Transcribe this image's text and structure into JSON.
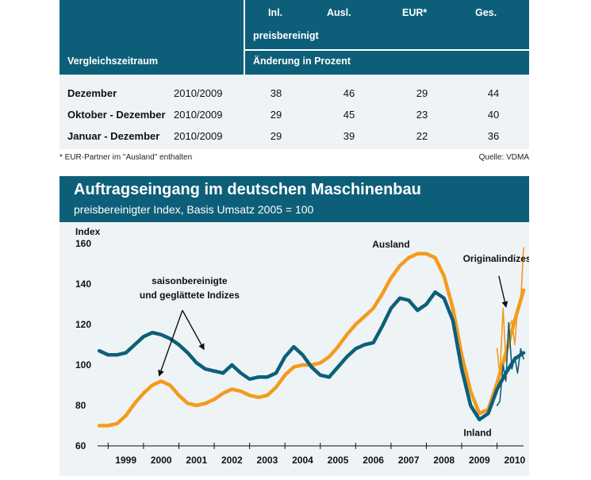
{
  "table": {
    "headers": {
      "inl": "Inl.",
      "ausl": "Ausl.",
      "eur": "EUR*",
      "ges": "Ges.",
      "preisbereinigt": "preisbereinigt",
      "vergleichszeitraum": "Vergleichszeitraum",
      "aenderung": "Änderung in Prozent"
    },
    "rows": [
      {
        "label": "Dezember",
        "period": "2010/2009",
        "inl": "38",
        "ausl": "46",
        "eur": "29",
        "ges": "44"
      },
      {
        "label": "Oktober - Dezember",
        "period": "2010/2009",
        "inl": "29",
        "ausl": "45",
        "eur": "23",
        "ges": "40"
      },
      {
        "label": "Januar - Dezember",
        "period": "2010/2009",
        "inl": "29",
        "ausl": "39",
        "eur": "22",
        "ges": "36"
      }
    ],
    "footnote": "* EUR-Partner im \"Ausland\" enthalten",
    "source": "Quelle: VDMA"
  },
  "chart_data": {
    "type": "line",
    "title": "Auftragseingang im deutschen Maschinenbau",
    "subtitle": "preisbereinigter Index, Basis Umsatz 2005 = 100",
    "ylabel": "Index",
    "ylim": [
      60,
      160
    ],
    "yticks": [
      "60",
      "80",
      "100",
      "120",
      "140",
      "160"
    ],
    "xlim": [
      1998.7,
      2010.75
    ],
    "xticks": [
      {
        "label": "1999",
        "x": 1999.5
      },
      {
        "label": "2000",
        "x": 2000.5
      },
      {
        "label": "2001",
        "x": 2001.5
      },
      {
        "label": "2002",
        "x": 2002.5
      },
      {
        "label": "2003",
        "x": 2003.5
      },
      {
        "label": "2004",
        "x": 2004.5
      },
      {
        "label": "2005",
        "x": 2005.5
      },
      {
        "label": "2006",
        "x": 2006.5
      },
      {
        "label": "2007",
        "x": 2007.5
      },
      {
        "label": "2008",
        "x": 2008.5
      },
      {
        "label": "2009",
        "x": 2009.5
      },
      {
        "label": "2010",
        "x": 2010.5
      }
    ],
    "grid": false,
    "series": [
      {
        "name": "Ausland",
        "color": "#f39b1d",
        "points": [
          [
            1998.75,
            70
          ],
          [
            1999.0,
            70
          ],
          [
            1999.25,
            71
          ],
          [
            1999.5,
            75
          ],
          [
            1999.75,
            81
          ],
          [
            2000.0,
            86
          ],
          [
            2000.25,
            90
          ],
          [
            2000.5,
            92
          ],
          [
            2000.75,
            90
          ],
          [
            2001.0,
            85
          ],
          [
            2001.25,
            81
          ],
          [
            2001.5,
            80
          ],
          [
            2001.75,
            81
          ],
          [
            2002.0,
            83
          ],
          [
            2002.25,
            86
          ],
          [
            2002.5,
            88
          ],
          [
            2002.75,
            87
          ],
          [
            2003.0,
            85
          ],
          [
            2003.25,
            84
          ],
          [
            2003.5,
            85
          ],
          [
            2003.75,
            89
          ],
          [
            2004.0,
            95
          ],
          [
            2004.25,
            99
          ],
          [
            2004.5,
            100
          ],
          [
            2004.75,
            100
          ],
          [
            2005.0,
            101
          ],
          [
            2005.25,
            104
          ],
          [
            2005.5,
            109
          ],
          [
            2005.75,
            115
          ],
          [
            2006.0,
            120
          ],
          [
            2006.25,
            124
          ],
          [
            2006.5,
            128
          ],
          [
            2006.75,
            135
          ],
          [
            2007.0,
            143
          ],
          [
            2007.25,
            149
          ],
          [
            2007.5,
            153
          ],
          [
            2007.75,
            155
          ],
          [
            2008.0,
            155
          ],
          [
            2008.25,
            153
          ],
          [
            2008.5,
            144
          ],
          [
            2008.75,
            128
          ],
          [
            2009.0,
            105
          ],
          [
            2009.25,
            87
          ],
          [
            2009.5,
            76
          ],
          [
            2009.75,
            78
          ],
          [
            2010.0,
            91
          ],
          [
            2010.25,
            106
          ],
          [
            2010.5,
            122
          ],
          [
            2010.75,
            137
          ]
        ]
      },
      {
        "name": "Inland",
        "color": "#0d5f79",
        "points": [
          [
            1998.75,
            107
          ],
          [
            1999.0,
            105
          ],
          [
            1999.25,
            105
          ],
          [
            1999.5,
            106
          ],
          [
            1999.75,
            110
          ],
          [
            2000.0,
            114
          ],
          [
            2000.25,
            116
          ],
          [
            2000.5,
            115
          ],
          [
            2000.75,
            113
          ],
          [
            2001.0,
            110
          ],
          [
            2001.25,
            106
          ],
          [
            2001.5,
            101
          ],
          [
            2001.75,
            98
          ],
          [
            2002.0,
            97
          ],
          [
            2002.25,
            96
          ],
          [
            2002.5,
            100
          ],
          [
            2002.75,
            96
          ],
          [
            2003.0,
            93
          ],
          [
            2003.25,
            94
          ],
          [
            2003.5,
            94
          ],
          [
            2003.75,
            96
          ],
          [
            2004.0,
            104
          ],
          [
            2004.25,
            109
          ],
          [
            2004.5,
            105
          ],
          [
            2004.75,
            99
          ],
          [
            2005.0,
            95
          ],
          [
            2005.25,
            94
          ],
          [
            2005.5,
            99
          ],
          [
            2005.75,
            104
          ],
          [
            2006.0,
            108
          ],
          [
            2006.25,
            110
          ],
          [
            2006.5,
            111
          ],
          [
            2006.75,
            119
          ],
          [
            2007.0,
            128
          ],
          [
            2007.25,
            133
          ],
          [
            2007.5,
            132
          ],
          [
            2007.75,
            127
          ],
          [
            2008.0,
            130
          ],
          [
            2008.25,
            136
          ],
          [
            2008.5,
            133
          ],
          [
            2008.75,
            122
          ],
          [
            2009.0,
            98
          ],
          [
            2009.25,
            80
          ],
          [
            2009.5,
            73
          ],
          [
            2009.75,
            76
          ],
          [
            2010.0,
            88
          ],
          [
            2010.25,
            96
          ],
          [
            2010.5,
            103
          ],
          [
            2010.75,
            106
          ]
        ]
      },
      {
        "name": "Ausland Original",
        "color": "#f39b1d",
        "points": [
          [
            2010.0,
            108
          ],
          [
            2010.08,
            95
          ],
          [
            2010.17,
            128
          ],
          [
            2010.25,
            102
          ],
          [
            2010.33,
            118
          ],
          [
            2010.42,
            122
          ],
          [
            2010.5,
            110
          ],
          [
            2010.58,
            128
          ],
          [
            2010.67,
            131
          ],
          [
            2010.75,
            158
          ]
        ]
      },
      {
        "name": "Inland Original",
        "color": "#0d5f79",
        "points": [
          [
            2010.0,
            80
          ],
          [
            2010.08,
            82
          ],
          [
            2010.17,
            100
          ],
          [
            2010.25,
            92
          ],
          [
            2010.33,
            121
          ],
          [
            2010.42,
            98
          ],
          [
            2010.5,
            104
          ],
          [
            2010.58,
            96
          ],
          [
            2010.67,
            108
          ],
          [
            2010.75,
            103
          ]
        ]
      }
    ],
    "annotations": [
      {
        "text": "Ausland",
        "x": 2007.0,
        "y": 158
      },
      {
        "text": "Inland",
        "x": 2009.45,
        "y": 65
      },
      {
        "text": "Originalindizes",
        "x": 2010.0,
        "y": 151
      },
      {
        "text": "saisonbereinigte",
        "x": 2001.3,
        "y": 140
      },
      {
        "text": "und geglättete Indizes",
        "x": 2001.3,
        "y": 133
      }
    ]
  }
}
